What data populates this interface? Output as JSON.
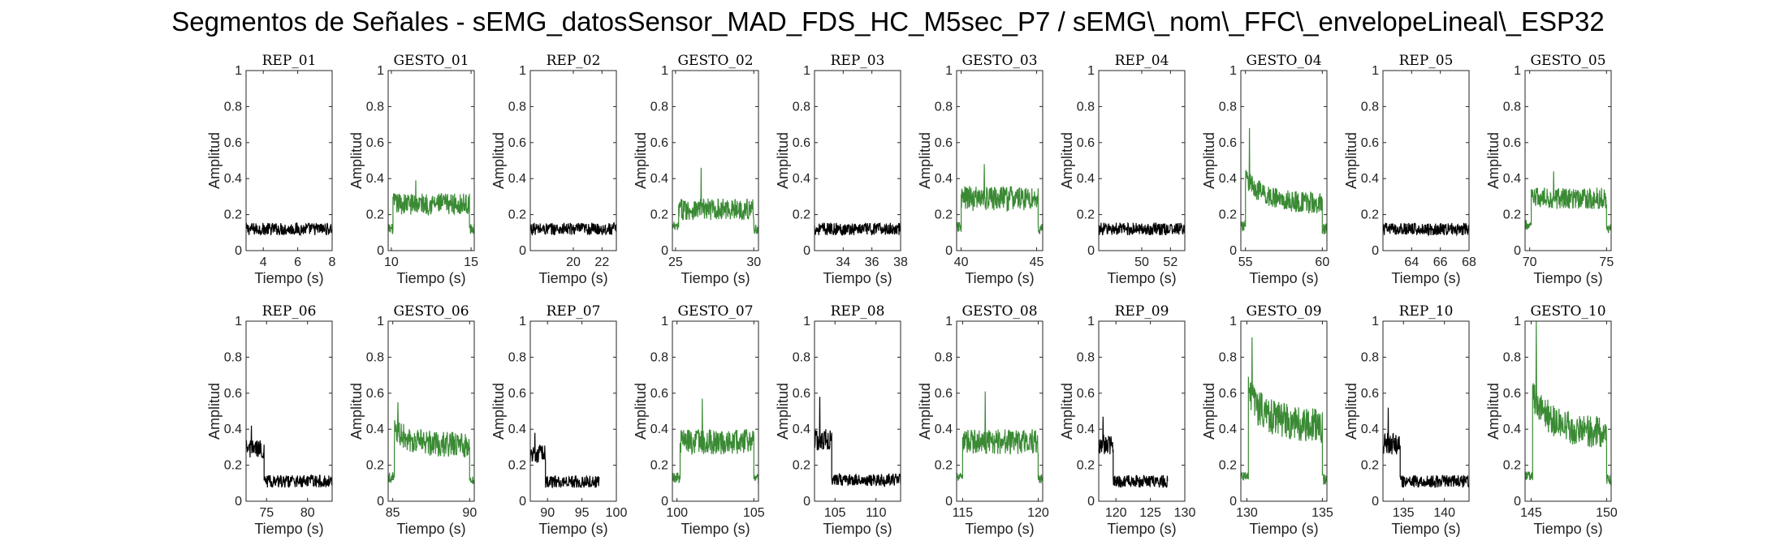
{
  "title": "Segmentos de Señales - sEMG_datosSensor_MAD_FDS_HC_M5sec_P7 / sEMG\\_nom\\_FFC\\_envelopeLineal\\_ESP32",
  "colors": {
    "rep": "#000000",
    "gesto": "#3a8a34"
  },
  "chart_data": {
    "type": "line",
    "xlabel": "Tiempo (s)",
    "ylabel": "Amplitud",
    "ylim": [
      0,
      1
    ],
    "yticks": [
      "0",
      "0.2",
      "0.4",
      "0.6",
      "0.8",
      "1"
    ],
    "subplots": [
      {
        "title": "REP_01",
        "kind": "rep",
        "xlim": [
          3,
          8
        ],
        "xticks": [
          4,
          6,
          8
        ],
        "segments": [
          {
            "from": 3,
            "to": 8,
            "level": 0.12,
            "noise": 0.035
          }
        ]
      },
      {
        "title": "GESTO_01",
        "kind": "gesto",
        "xlim": [
          9.8,
          15.2
        ],
        "xticks": [
          10,
          15
        ],
        "segments": [
          {
            "from": 9.8,
            "to": 10.1,
            "level": 0.12,
            "noise": 0.03
          },
          {
            "from": 10.1,
            "to": 14.9,
            "level": 0.26,
            "noise": 0.06,
            "peak": 0.39
          },
          {
            "from": 14.9,
            "to": 15.2,
            "level": 0.12,
            "noise": 0.03
          }
        ]
      },
      {
        "title": "REP_02",
        "kind": "rep",
        "xlim": [
          17,
          23
        ],
        "xticks": [
          20,
          22
        ],
        "segments": [
          {
            "from": 17,
            "to": 23,
            "level": 0.12,
            "noise": 0.035
          }
        ]
      },
      {
        "title": "GESTO_02",
        "kind": "gesto",
        "xlim": [
          24.8,
          30.3
        ],
        "xticks": [
          25,
          30
        ],
        "segments": [
          {
            "from": 24.8,
            "to": 25.2,
            "level": 0.13,
            "noise": 0.03
          },
          {
            "from": 25.2,
            "to": 30,
            "level": 0.23,
            "noise": 0.06,
            "peak": 0.46
          },
          {
            "from": 30,
            "to": 30.3,
            "level": 0.12,
            "noise": 0.03
          }
        ]
      },
      {
        "title": "REP_03",
        "kind": "rep",
        "xlim": [
          32,
          38
        ],
        "xticks": [
          34,
          36,
          38
        ],
        "segments": [
          {
            "from": 32,
            "to": 38,
            "level": 0.12,
            "noise": 0.035
          }
        ]
      },
      {
        "title": "GESTO_03",
        "kind": "gesto",
        "xlim": [
          39.7,
          45.4
        ],
        "xticks": [
          40,
          45
        ],
        "segments": [
          {
            "from": 39.7,
            "to": 40,
            "level": 0.13,
            "noise": 0.03
          },
          {
            "from": 40,
            "to": 45.1,
            "level": 0.29,
            "noise": 0.07,
            "peak": 0.48
          },
          {
            "from": 45.1,
            "to": 45.4,
            "level": 0.12,
            "noise": 0.03
          }
        ]
      },
      {
        "title": "REP_04",
        "kind": "rep",
        "xlim": [
          47,
          53
        ],
        "xticks": [
          50,
          52
        ],
        "segments": [
          {
            "from": 47,
            "to": 53,
            "level": 0.12,
            "noise": 0.035
          }
        ]
      },
      {
        "title": "GESTO_04",
        "kind": "gesto",
        "xlim": [
          54.7,
          60.3
        ],
        "xticks": [
          55,
          60
        ],
        "segments": [
          {
            "from": 54.7,
            "to": 55,
            "level": 0.14,
            "noise": 0.03
          },
          {
            "from": 55,
            "to": 60,
            "level": 0.26,
            "noise": 0.06,
            "peak": 0.68,
            "decay": true
          },
          {
            "from": 60,
            "to": 60.3,
            "level": 0.12,
            "noise": 0.03
          }
        ]
      },
      {
        "title": "REP_05",
        "kind": "rep",
        "xlim": [
          62,
          68
        ],
        "xticks": [
          64,
          66,
          68
        ],
        "segments": [
          {
            "from": 62,
            "to": 68,
            "level": 0.12,
            "noise": 0.035
          }
        ]
      },
      {
        "title": "GESTO_05",
        "kind": "gesto",
        "xlim": [
          69.7,
          75.3
        ],
        "xticks": [
          70,
          75
        ],
        "segments": [
          {
            "from": 69.7,
            "to": 70.1,
            "level": 0.14,
            "noise": 0.03
          },
          {
            "from": 70.1,
            "to": 75,
            "level": 0.29,
            "noise": 0.06,
            "peak": 0.44
          },
          {
            "from": 75,
            "to": 75.3,
            "level": 0.12,
            "noise": 0.03
          }
        ]
      },
      {
        "title": "REP_06",
        "kind": "rep",
        "xlim": [
          72.5,
          83
        ],
        "xticks": [
          75,
          80
        ],
        "segments": [
          {
            "from": 72.5,
            "to": 74.7,
            "level": 0.29,
            "noise": 0.05,
            "peak": 0.42
          },
          {
            "from": 74.7,
            "to": 83,
            "level": 0.11,
            "noise": 0.035
          }
        ]
      },
      {
        "title": "GESTO_06",
        "kind": "gesto",
        "xlim": [
          84.7,
          90.3
        ],
        "xticks": [
          85,
          90
        ],
        "segments": [
          {
            "from": 84.7,
            "to": 85.1,
            "level": 0.13,
            "noise": 0.03
          },
          {
            "from": 85.1,
            "to": 90,
            "level": 0.31,
            "noise": 0.07,
            "peak": 0.55,
            "decay": true
          },
          {
            "from": 90,
            "to": 90.3,
            "level": 0.12,
            "noise": 0.03
          }
        ]
      },
      {
        "title": "REP_07",
        "kind": "rep",
        "xlim": [
          87.5,
          100
        ],
        "xticks": [
          90,
          95,
          100
        ],
        "segments": [
          {
            "from": 87.5,
            "to": 89.7,
            "level": 0.26,
            "noise": 0.05,
            "peak": 0.38
          },
          {
            "from": 89.7,
            "to": 97.5,
            "level": 0.11,
            "noise": 0.035
          }
        ]
      },
      {
        "title": "GESTO_07",
        "kind": "gesto",
        "xlim": [
          99.7,
          105.3
        ],
        "xticks": [
          100,
          105
        ],
        "segments": [
          {
            "from": 99.7,
            "to": 100.2,
            "level": 0.13,
            "noise": 0.03
          },
          {
            "from": 100.2,
            "to": 105,
            "level": 0.33,
            "noise": 0.07,
            "peak": 0.57
          },
          {
            "from": 105,
            "to": 105.3,
            "level": 0.12,
            "noise": 0.03
          }
        ]
      },
      {
        "title": "REP_08",
        "kind": "rep",
        "xlim": [
          102.5,
          113
        ],
        "xticks": [
          105,
          110
        ],
        "segments": [
          {
            "from": 102.5,
            "to": 104.6,
            "level": 0.34,
            "noise": 0.06,
            "peak": 0.58
          },
          {
            "from": 104.6,
            "to": 113,
            "level": 0.12,
            "noise": 0.035
          }
        ]
      },
      {
        "title": "GESTO_08",
        "kind": "gesto",
        "xlim": [
          114.6,
          120.3
        ],
        "xticks": [
          115,
          120
        ],
        "segments": [
          {
            "from": 114.6,
            "to": 115,
            "level": 0.13,
            "noise": 0.03
          },
          {
            "from": 115,
            "to": 120,
            "level": 0.33,
            "noise": 0.07,
            "peak": 0.61
          },
          {
            "from": 120,
            "to": 120.3,
            "level": 0.12,
            "noise": 0.03
          }
        ]
      },
      {
        "title": "REP_09",
        "kind": "rep",
        "xlim": [
          117.5,
          130
        ],
        "xticks": [
          120,
          125,
          130
        ],
        "segments": [
          {
            "from": 117.5,
            "to": 119.6,
            "level": 0.31,
            "noise": 0.06,
            "peak": 0.47
          },
          {
            "from": 119.6,
            "to": 127.5,
            "level": 0.11,
            "noise": 0.035
          }
        ]
      },
      {
        "title": "GESTO_09",
        "kind": "gesto",
        "xlim": [
          129.6,
          135.3
        ],
        "xticks": [
          130,
          135
        ],
        "segments": [
          {
            "from": 129.6,
            "to": 130.1,
            "level": 0.14,
            "noise": 0.03
          },
          {
            "from": 130.1,
            "to": 135,
            "level": 0.42,
            "noise": 0.1,
            "peak": 0.91,
            "decay": true
          },
          {
            "from": 135,
            "to": 135.3,
            "level": 0.12,
            "noise": 0.03
          }
        ]
      },
      {
        "title": "REP_10",
        "kind": "rep",
        "xlim": [
          132.5,
          143
        ],
        "xticks": [
          135,
          140
        ],
        "segments": [
          {
            "from": 132.5,
            "to": 134.6,
            "level": 0.32,
            "noise": 0.06,
            "peak": 0.52
          },
          {
            "from": 134.6,
            "to": 143,
            "level": 0.11,
            "noise": 0.035
          }
        ]
      },
      {
        "title": "GESTO_10",
        "kind": "gesto",
        "xlim": [
          144.6,
          150.3
        ],
        "xticks": [
          145,
          150
        ],
        "segments": [
          {
            "from": 144.6,
            "to": 145.1,
            "level": 0.14,
            "noise": 0.03
          },
          {
            "from": 145.1,
            "to": 150,
            "level": 0.38,
            "noise": 0.09,
            "peak": 1.0,
            "decay": true
          },
          {
            "from": 150,
            "to": 150.3,
            "level": 0.12,
            "noise": 0.03
          }
        ]
      }
    ]
  }
}
